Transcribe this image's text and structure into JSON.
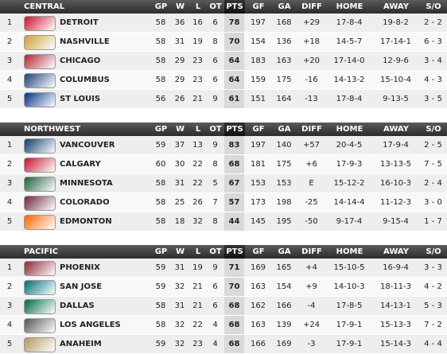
{
  "divisions": [
    {
      "name": "CENTRAL",
      "columns": [
        "GP",
        "W",
        "L",
        "OT",
        "PTS",
        "GF",
        "GA",
        "DIFF",
        "HOME",
        "AWAY",
        "S/O"
      ],
      "rows": [
        [
          1,
          "DETROIT",
          58,
          36,
          16,
          6,
          78,
          197,
          168,
          "+29",
          "17-8-4",
          "19-8-2",
          "2 - 2"
        ],
        [
          2,
          "NASHVILLE",
          58,
          31,
          19,
          8,
          70,
          154,
          136,
          "+18",
          "14-5-7",
          "17-14-1",
          "6 - 3"
        ],
        [
          3,
          "CHICAGO",
          58,
          29,
          23,
          6,
          64,
          183,
          163,
          "+20",
          "17-14-0",
          "12-9-6",
          "3 - 4"
        ],
        [
          4,
          "COLUMBUS",
          58,
          29,
          23,
          6,
          64,
          159,
          175,
          "-16",
          "14-13-2",
          "15-10-4",
          "4 - 3"
        ],
        [
          5,
          "ST LOUIS",
          56,
          26,
          21,
          9,
          61,
          151,
          164,
          "-13",
          "17-8-4",
          "9-13-5",
          "3 - 5"
        ]
      ]
    },
    {
      "name": "NORTHWEST",
      "columns": [
        "GP",
        "W",
        "L",
        "OT",
        "PTS",
        "GF",
        "GA",
        "DIFF",
        "HOME",
        "AWAY",
        "S/O"
      ],
      "rows": [
        [
          1,
          "VANCOUVER",
          59,
          37,
          13,
          9,
          83,
          197,
          140,
          "+57",
          "20-4-5",
          "17-9-4",
          "2 - 5"
        ],
        [
          2,
          "CALGARY",
          60,
          30,
          22,
          8,
          68,
          181,
          175,
          "+6",
          "17-9-3",
          "13-13-5",
          "7 - 5"
        ],
        [
          3,
          "MINNESOTA",
          58,
          31,
          22,
          5,
          67,
          153,
          153,
          "E",
          "15-12-2",
          "16-10-3",
          "2 - 4"
        ],
        [
          4,
          "COLORADO",
          58,
          25,
          26,
          7,
          57,
          173,
          198,
          "-25",
          "14-14-4",
          "11-12-3",
          "3 - 0"
        ],
        [
          5,
          "EDMONTON",
          58,
          18,
          32,
          8,
          44,
          145,
          195,
          "-50",
          "9-17-4",
          "9-15-4",
          "1 - 7"
        ]
      ]
    },
    {
      "name": "PACIFIC",
      "columns": [
        "GP",
        "W",
        "L",
        "OT",
        "PTS",
        "GF",
        "GA",
        "DIFF",
        "HOME",
        "AWAY",
        "S/O"
      ],
      "rows": [
        [
          1,
          "PHOENIX",
          59,
          31,
          19,
          9,
          71,
          169,
          165,
          "+4",
          "15-10-5",
          "16-9-4",
          "3 - 3"
        ],
        [
          2,
          "SAN JOSE",
          59,
          32,
          21,
          6,
          70,
          163,
          154,
          "+9",
          "14-10-3",
          "18-11-3",
          "4 - 2"
        ],
        [
          3,
          "DALLAS",
          58,
          31,
          21,
          6,
          68,
          162,
          166,
          "-4",
          "17-8-5",
          "14-13-1",
          "5 - 3"
        ],
        [
          4,
          "LOS ANGELES",
          58,
          32,
          22,
          4,
          68,
          163,
          139,
          "+24",
          "17-9-1",
          "15-13-3",
          "7 - 2"
        ],
        [
          5,
          "ANAHEIM",
          59,
          32,
          23,
          4,
          68,
          166,
          169,
          "-3",
          "17-9-1",
          "15-14-3",
          "4 - 4"
        ]
      ]
    }
  ]
}
